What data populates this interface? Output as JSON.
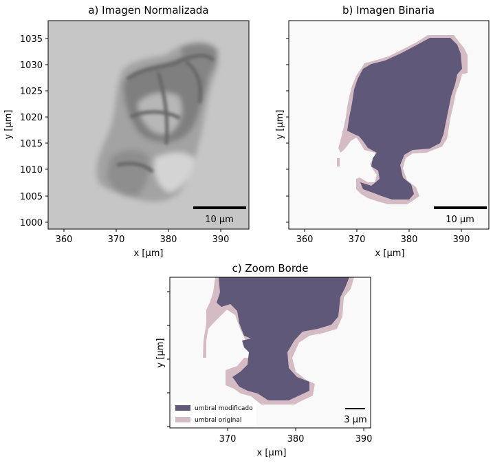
{
  "colors": {
    "modified": "#5f5878",
    "original": "#d5bcc4",
    "background": "#f9f9f9",
    "gray_bg": "#c4c4c4",
    "gray_dark": "#6d6d6d"
  },
  "panel_a": {
    "title": "a) Imagen Normalizada",
    "xlabel": "x [µm]",
    "ylabel": "y [µm]",
    "xticks": [
      "360",
      "370",
      "380",
      "390"
    ],
    "yticks": [
      "1035",
      "1030",
      "1025",
      "1020",
      "1015",
      "1010",
      "1005",
      "1000"
    ],
    "scalebar_label": "10 µm"
  },
  "panel_b": {
    "title": "b) Imagen Binaria",
    "xlabel": "x [µm]",
    "ylabel": "y [µm]",
    "xticks": [
      "360",
      "370",
      "380",
      "390"
    ],
    "scalebar_label": "10 µm"
  },
  "panel_c": {
    "title": "c) Zoom Borde",
    "xlabel": "x [µm]",
    "ylabel": "y [µm]",
    "xticks": [
      "370",
      "380",
      "390"
    ],
    "scalebar_label": "3 µm",
    "legend": [
      {
        "label": "umbral modificado",
        "color": "#5f5878"
      },
      {
        "label": "umbral original",
        "color": "#d5bcc4"
      }
    ]
  }
}
